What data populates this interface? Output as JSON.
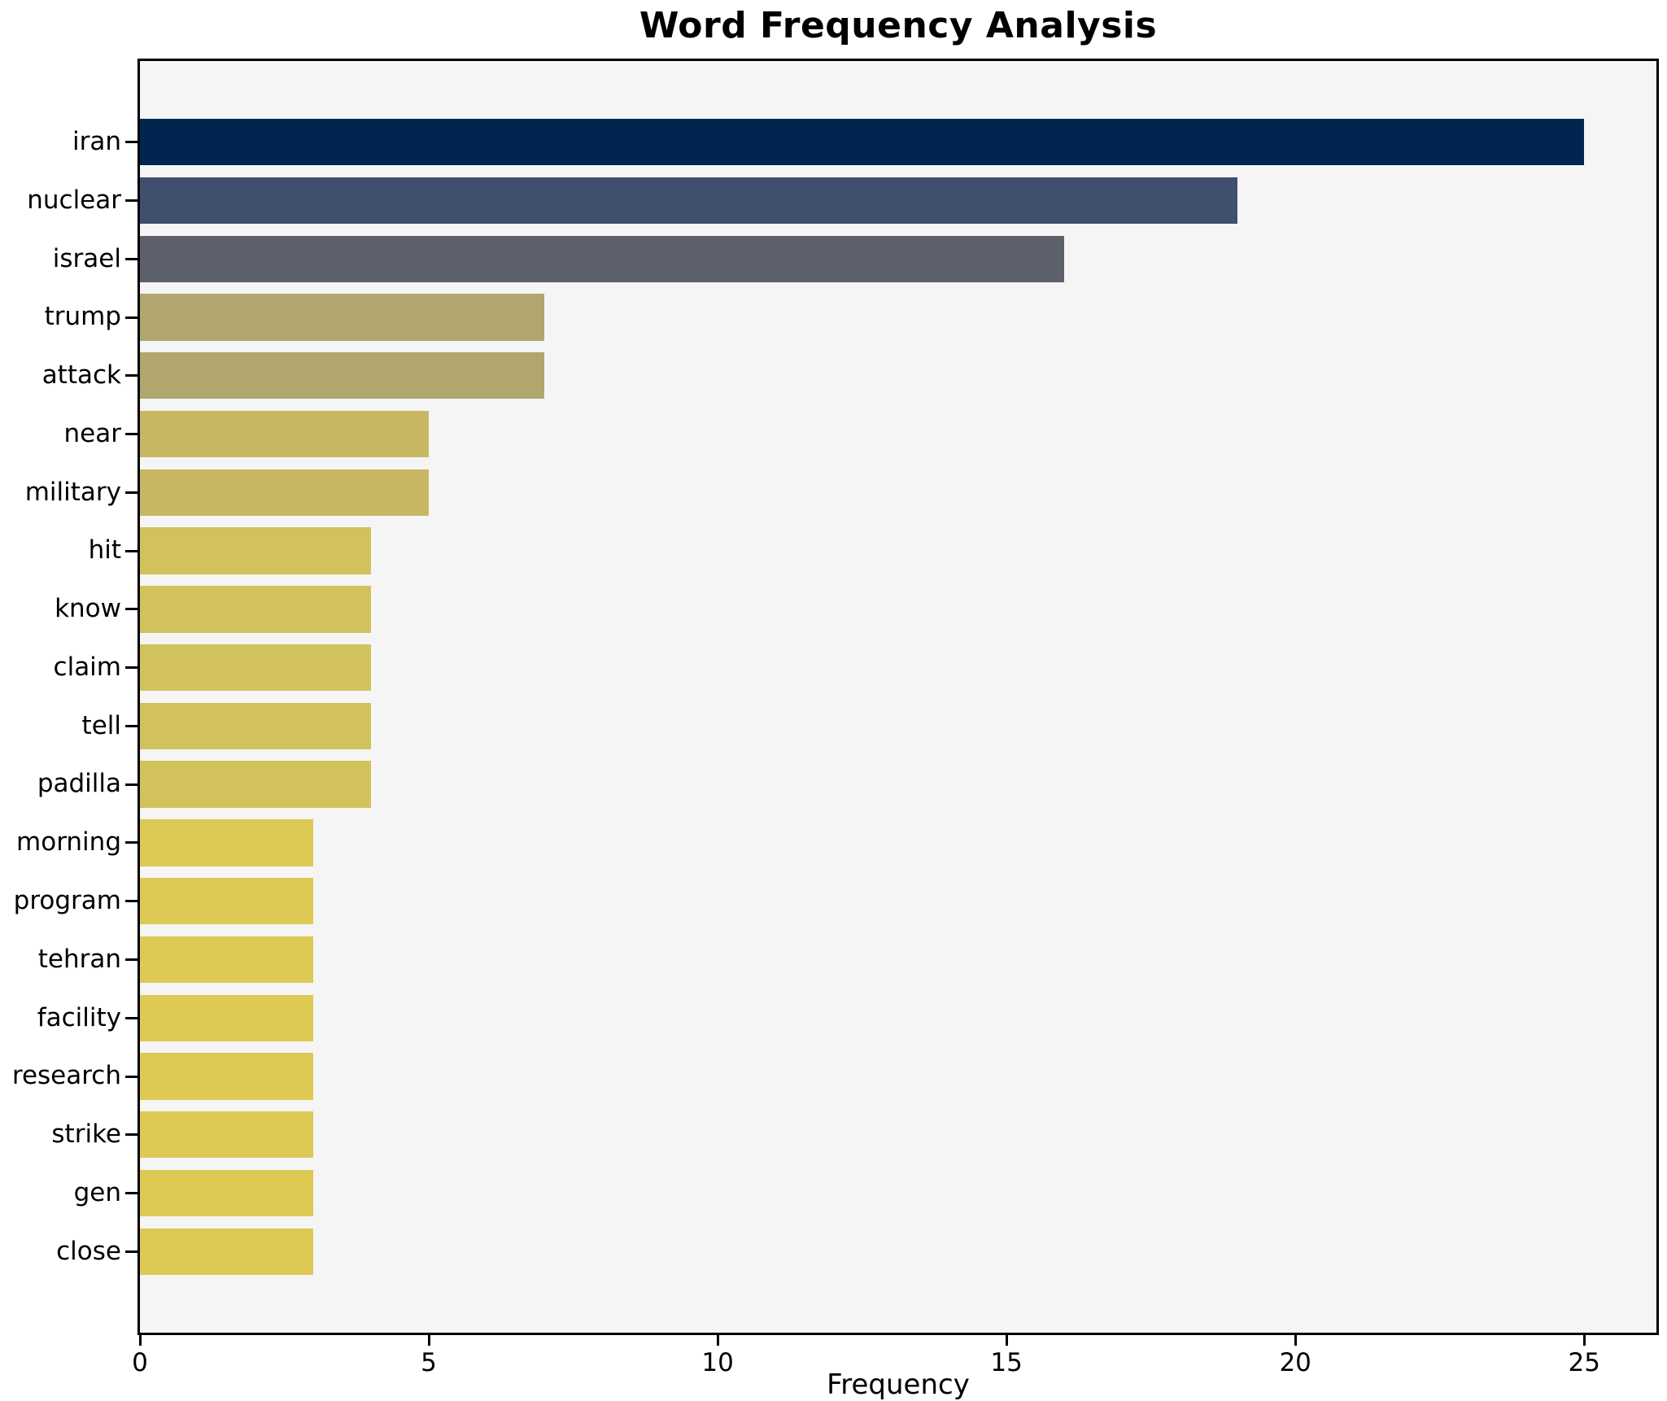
{
  "chart_data": {
    "type": "bar",
    "orientation": "horizontal",
    "title": "Word Frequency Analysis",
    "xlabel": "Frequency",
    "ylabel": "",
    "categories": [
      "iran",
      "nuclear",
      "israel",
      "trump",
      "attack",
      "near",
      "military",
      "hit",
      "know",
      "claim",
      "tell",
      "padilla",
      "morning",
      "program",
      "tehran",
      "facility",
      "research",
      "strike",
      "gen",
      "close"
    ],
    "values": [
      25,
      19,
      16,
      7,
      7,
      5,
      5,
      4,
      4,
      4,
      4,
      4,
      3,
      3,
      3,
      3,
      3,
      3,
      3,
      3
    ],
    "bar_colors": [
      "#00254e",
      "#414f6e",
      "#5c616c",
      "#b1a66d",
      "#b1a66d",
      "#c7b762",
      "#c7b762",
      "#d2c25c",
      "#d2c25c",
      "#d2c25c",
      "#d2c25c",
      "#d2c25c",
      "#ddc954",
      "#ddc954",
      "#ddc954",
      "#ddc954",
      "#ddc954",
      "#ddc954",
      "#ddc954",
      "#ddc954"
    ],
    "x_ticks": [
      0,
      5,
      10,
      15,
      20,
      25
    ],
    "xlim": [
      0,
      26.25
    ],
    "grid": false,
    "legend_position": "none",
    "plot_background": "#f5f5f5",
    "figure_background": "#ffffff",
    "accent_dark": "#00254e",
    "accent_light": "#ddc954"
  }
}
